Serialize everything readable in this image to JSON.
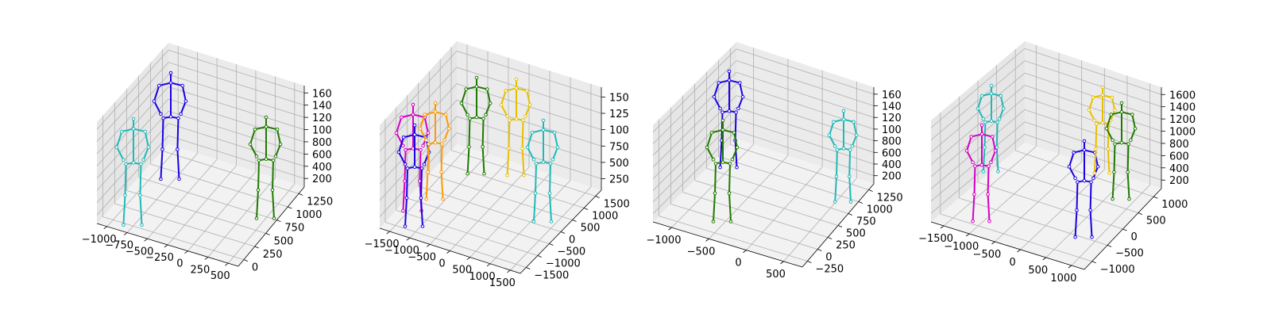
{
  "figure": {
    "background": "#ffffff",
    "pane_colors": [
      "#f2f2f2",
      "#e6e6e6",
      "#ebebeb"
    ],
    "grid_color": "#b0b0b0"
  },
  "chart_data": [
    {
      "type": "scatter3d",
      "grid": true,
      "xticks": [
        "−1000",
        "−750",
        "−500",
        "−250",
        "0",
        "250",
        "500"
      ],
      "yticks": [
        "0",
        "250",
        "500",
        "750",
        "1000",
        "1250"
      ],
      "zticks": [
        "200",
        "400",
        "600",
        "800",
        "1000",
        "1200",
        "1400",
        "1600"
      ],
      "zticks_display": [
        "200",
        "400",
        "600",
        "800",
        "100",
        "120",
        "140",
        "160"
      ],
      "series": [
        {
          "color": "#1a00e6"
        },
        {
          "color": "#22b8b8"
        },
        {
          "color": "#1e7a00"
        }
      ]
    },
    {
      "type": "scatter3d",
      "grid": true,
      "xticks": [
        "−1500",
        "−1000",
        "−500",
        "0",
        "500",
        "1000",
        "1500"
      ],
      "yticks": [
        "−1500",
        "−1000",
        "−500",
        "0",
        "500",
        "1000",
        "1500"
      ],
      "zticks": [
        "250",
        "500",
        "750",
        "1000",
        "1250",
        "1500"
      ],
      "zticks_display": [
        "250",
        "500",
        "750",
        "100",
        "125",
        "150"
      ],
      "series": [
        {
          "color": "#1a00e6"
        },
        {
          "color": "#d400c4"
        },
        {
          "color": "#ff9a00"
        },
        {
          "color": "#1e7a00"
        },
        {
          "color": "#e6c000"
        },
        {
          "color": "#22b8b8"
        }
      ]
    },
    {
      "type": "scatter3d",
      "grid": true,
      "xticks": [
        "−1000",
        "−500",
        "0",
        "500"
      ],
      "yticks": [
        "−250",
        "0",
        "250",
        "500",
        "750",
        "1000",
        "1250"
      ],
      "zticks": [
        "200",
        "400",
        "600",
        "800",
        "1000",
        "1200",
        "1400",
        "1600"
      ],
      "zticks_display": [
        "200",
        "400",
        "600",
        "800",
        "100",
        "120",
        "140",
        "160"
      ],
      "series": [
        {
          "color": "#1a00e6"
        },
        {
          "color": "#1e7a00"
        },
        {
          "color": "#22b8b8"
        }
      ]
    },
    {
      "type": "scatter3d",
      "grid": true,
      "xticks": [
        "−1500",
        "−1000",
        "−500",
        "0",
        "500",
        "1000"
      ],
      "yticks": [
        "−1000",
        "−500",
        "0",
        "500",
        "1000"
      ],
      "zticks": [
        "200",
        "400",
        "600",
        "800",
        "1000",
        "1200",
        "1400",
        "1600"
      ],
      "zticks_display": [
        "200",
        "400",
        "600",
        "800",
        "1000",
        "1200",
        "1400",
        "1600"
      ],
      "series": [
        {
          "color": "#22b8b8"
        },
        {
          "color": "#d400c4"
        },
        {
          "color": "#1a00e6"
        },
        {
          "color": "#e6c000"
        },
        {
          "color": "#1e7a00"
        }
      ]
    }
  ]
}
